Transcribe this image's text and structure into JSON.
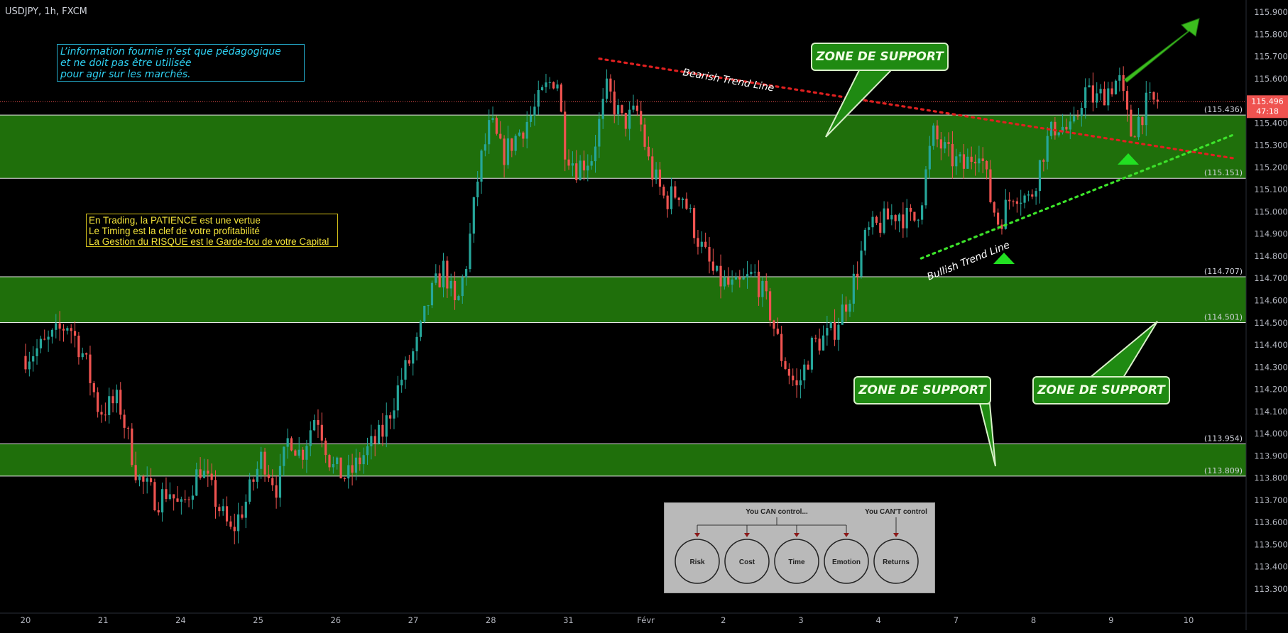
{
  "header": {
    "symbol": "USDJPY, 1h, FXCM"
  },
  "colors": {
    "zone": "#1f6f0b",
    "bull": "#26a69a",
    "bear": "#ef5350",
    "axis_text": "#b2b5be",
    "price_tag": "#ef5350",
    "support_arrow": "#3cbd1e"
  },
  "chart_data": {
    "type": "candlestick",
    "title": "USDJPY, 1h, FXCM",
    "ylim": [
      113.2,
      116.0
    ],
    "y_ticks": [
      "115.900",
      "115.800",
      "115.700",
      "115.600",
      "115.500",
      "115.400",
      "115.300",
      "115.200",
      "115.100",
      "115.000",
      "114.900",
      "114.800",
      "114.700",
      "114.600",
      "114.500",
      "114.400",
      "114.300",
      "114.200",
      "114.100",
      "114.000",
      "113.900",
      "113.800",
      "113.700",
      "113.600",
      "113.500",
      "113.400",
      "113.300"
    ],
    "x_ticks": [
      "20",
      "21",
      "24",
      "25",
      "26",
      "27",
      "28",
      "31",
      "Févr",
      "2",
      "3",
      "4",
      "7",
      "8",
      "9",
      "10"
    ],
    "support_zones": [
      {
        "top": 115.436,
        "bottom": 115.151,
        "top_label": "(115.436)",
        "bottom_label": "(115.151)"
      },
      {
        "top": 114.707,
        "bottom": 114.501,
        "top_label": "(114.707)",
        "bottom_label": "(114.501)"
      },
      {
        "top": 113.954,
        "bottom": 113.809,
        "top_label": "(113.954)",
        "bottom_label": "(113.809)"
      }
    ],
    "last_price": {
      "value": 115.496,
      "label": "115.496",
      "countdown": "47:18"
    },
    "trend_lines": [
      {
        "name": "Bearish Trend Line",
        "color": "#e02020",
        "from": {
          "x": 7.4,
          "y": 115.69
        },
        "to": {
          "x": 15.6,
          "y": 115.24
        }
      },
      {
        "name": "Bullish Trend Line",
        "color": "#3ce22a",
        "from": {
          "x": 11.55,
          "y": 114.79
        },
        "to": {
          "x": 15.6,
          "y": 115.35
        }
      }
    ],
    "waypoints": [
      [
        0.0,
        114.35
      ],
      [
        0.25,
        114.4
      ],
      [
        0.55,
        114.5
      ],
      [
        0.75,
        114.35
      ],
      [
        0.95,
        114.1
      ],
      [
        1.2,
        114.15
      ],
      [
        1.45,
        113.8
      ],
      [
        1.7,
        113.7
      ],
      [
        1.85,
        113.75
      ],
      [
        2.0,
        113.65
      ],
      [
        2.25,
        113.85
      ],
      [
        2.45,
        113.7
      ],
      [
        2.65,
        113.55
      ],
      [
        2.85,
        113.7
      ],
      [
        3.05,
        113.9
      ],
      [
        3.25,
        113.75
      ],
      [
        3.4,
        114.0
      ],
      [
        3.55,
        113.9
      ],
      [
        3.75,
        114.1
      ],
      [
        3.95,
        113.85
      ],
      [
        4.15,
        113.8
      ],
      [
        4.35,
        113.9
      ],
      [
        4.6,
        114.0
      ],
      [
        4.85,
        114.25
      ],
      [
        5.05,
        114.4
      ],
      [
        5.2,
        114.6
      ],
      [
        5.4,
        114.75
      ],
      [
        5.55,
        114.55
      ],
      [
        5.7,
        114.8
      ],
      [
        5.85,
        115.2
      ],
      [
        6.0,
        115.4
      ],
      [
        6.15,
        115.25
      ],
      [
        6.35,
        115.35
      ],
      [
        6.55,
        115.45
      ],
      [
        6.7,
        115.55
      ],
      [
        6.85,
        115.62
      ],
      [
        6.95,
        115.3
      ],
      [
        7.1,
        115.2
      ],
      [
        7.3,
        115.25
      ],
      [
        7.5,
        115.55
      ],
      [
        7.7,
        115.4
      ],
      [
        7.9,
        115.45
      ],
      [
        8.05,
        115.2
      ],
      [
        8.25,
        115.05
      ],
      [
        8.45,
        115.1
      ],
      [
        8.7,
        114.85
      ],
      [
        8.9,
        114.7
      ],
      [
        9.15,
        114.65
      ],
      [
        9.4,
        114.72
      ],
      [
        9.6,
        114.55
      ],
      [
        9.75,
        114.35
      ],
      [
        9.95,
        114.2
      ],
      [
        10.15,
        114.4
      ],
      [
        10.4,
        114.45
      ],
      [
        10.65,
        114.65
      ],
      [
        10.85,
        114.9
      ],
      [
        11.05,
        114.95
      ],
      [
        11.25,
        115.0
      ],
      [
        11.45,
        114.95
      ],
      [
        11.55,
        115.05
      ],
      [
        11.7,
        115.35
      ],
      [
        11.9,
        115.25
      ],
      [
        12.1,
        115.2
      ],
      [
        12.3,
        115.3
      ],
      [
        12.45,
        115.05
      ],
      [
        12.55,
        114.95
      ],
      [
        12.75,
        115.1
      ],
      [
        12.95,
        115.05
      ],
      [
        13.15,
        115.3
      ],
      [
        13.3,
        115.4
      ],
      [
        13.5,
        115.35
      ],
      [
        13.65,
        115.55
      ],
      [
        13.8,
        115.5
      ],
      [
        13.95,
        115.55
      ],
      [
        14.1,
        115.6
      ],
      [
        14.25,
        115.35
      ],
      [
        14.45,
        115.48
      ],
      [
        14.6,
        115.496
      ]
    ],
    "annotations": [
      "ZONE DE SUPPORT",
      "ZONE DE SUPPORT",
      "ZONE DE SUPPORT",
      "Bearish Trend Line",
      "Bullish Trend Line"
    ]
  },
  "notes": {
    "education": [
      "L’information fournie n’est que pédagogique",
      "et ne doit pas être utilisée",
      "pour agir sur les marchés."
    ],
    "patience": [
      "En Trading, la PATIENCE est une vertue",
      "Le Timing est la clef de votre profitabilité",
      "La Gestion du RISQUE est le Garde-fou de votre Capital"
    ]
  },
  "zone_labels": [
    "ZONE DE SUPPORT",
    "ZONE DE SUPPORT",
    "ZONE DE SUPPORT"
  ],
  "control_panel": {
    "can_label": "You CAN control...",
    "cant_label": "You CAN'T control",
    "circles": [
      "Risk",
      "Cost",
      "Time",
      "Emotion",
      "Returns"
    ]
  }
}
